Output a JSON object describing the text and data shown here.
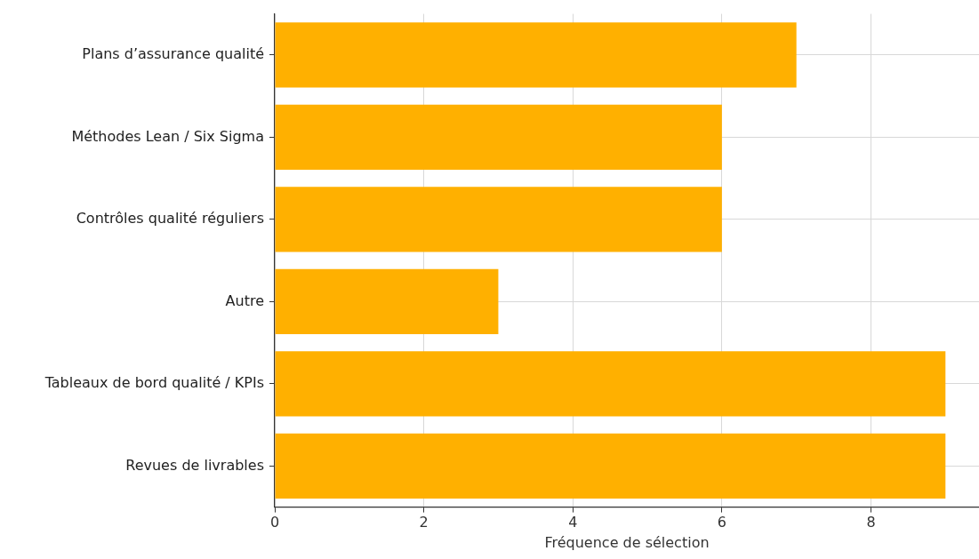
{
  "chart_data": {
    "type": "bar",
    "orientation": "horizontal",
    "xlabel": "Fréquence de sélection",
    "categories": [
      "Plans d’assurance qualité",
      "Méthodes Lean / Six Sigma",
      "Contrôles qualité réguliers",
      "Autre",
      "Tableaux de bord qualité / KPIs",
      "Revues de livrables"
    ],
    "values": [
      7,
      6,
      6,
      3,
      9,
      9
    ],
    "color": "#ffb000",
    "xlim": [
      0,
      9.45
    ],
    "xticks": [
      0,
      2,
      4,
      6,
      8
    ],
    "grid": true,
    "legend": false
  }
}
